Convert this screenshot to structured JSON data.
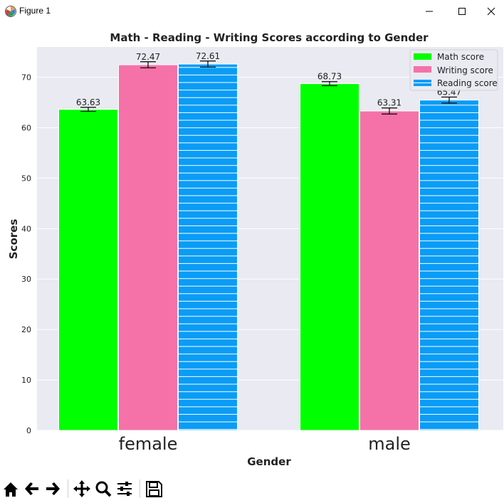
{
  "window": {
    "title": "Figure 1",
    "controls": [
      "minimize",
      "maximize",
      "close"
    ]
  },
  "chart_data": {
    "type": "bar",
    "title": "Math - Reading - Writing Scores according to Gender",
    "xlabel": "Gender",
    "ylabel": "Scores",
    "categories": [
      "female",
      "male"
    ],
    "ylim": [
      0,
      76
    ],
    "yticks": [
      0,
      10,
      20,
      30,
      40,
      50,
      60,
      70
    ],
    "grid": true,
    "legend_position": "top-right",
    "series": [
      {
        "name": "Math score",
        "values": [
          63.63,
          68.73
        ],
        "error": [
          0.4,
          0.4
        ],
        "color": "#00ff00",
        "hatch": "none"
      },
      {
        "name": "Writing score",
        "values": [
          72.47,
          63.31
        ],
        "error": [
          0.6,
          0.6
        ],
        "color": "#f472a8",
        "hatch": "none"
      },
      {
        "name": "Reading score",
        "values": [
          72.61,
          65.47
        ],
        "error": [
          0.6,
          0.6
        ],
        "color": "#0a9cf6",
        "hatch": "horizontal"
      }
    ],
    "value_labels": [
      [
        "63.63",
        "68.73"
      ],
      [
        "72.47",
        "63.31"
      ],
      [
        "72.61",
        "65.47"
      ]
    ]
  },
  "toolbar": {
    "buttons": [
      "home-icon",
      "back-icon",
      "forward-icon",
      "pan-icon",
      "zoom-icon",
      "configure-icon",
      "save-icon"
    ]
  },
  "colors": {
    "axes_bg": "#eaeaf2",
    "grid": "#ffffff",
    "math": "#00ff00",
    "writing": "#f472a8",
    "reading": "#0a9cf6"
  }
}
